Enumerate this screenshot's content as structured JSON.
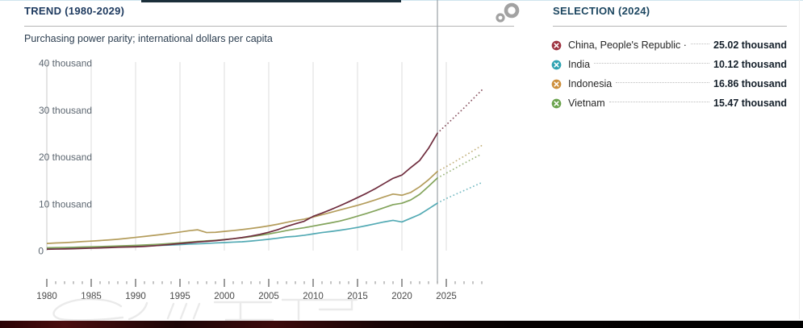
{
  "trend_panel": {
    "title": "TREND (1980-2029)",
    "subtitle": "Purchasing power parity; international dollars per capita"
  },
  "selection_panel": {
    "title": "SELECTION (2024)",
    "items": [
      {
        "label": "China, People's Republic ·",
        "value": "25.02 thousand",
        "icon_color": "#9e3340"
      },
      {
        "label": "India",
        "value": "10.12 thousand",
        "icon_color": "#2fa3b2"
      },
      {
        "label": "Indonesia",
        "value": "16.86 thousand",
        "icon_color": "#cd8f3c"
      },
      {
        "label": "Vietnam",
        "value": "15.47 thousand",
        "icon_color": "#6aa34d"
      }
    ]
  },
  "chart_data": {
    "type": "line",
    "title": "TREND (1980-2029)",
    "subtitle": "Purchasing power parity; international dollars per capita",
    "units": "thousand international dollars per capita",
    "x_start": 1980,
    "x_end": 2029,
    "solid_until_year": 2024,
    "selected_year": 2024,
    "ylim_thousand": [
      0,
      40
    ],
    "y_ticks": [
      {
        "value": 0,
        "label": "0"
      },
      {
        "value": 10,
        "label": "10 thousand"
      },
      {
        "value": 20,
        "label": "20 thousand"
      },
      {
        "value": 30,
        "label": "30 thousand"
      },
      {
        "value": 40,
        "label": "40 thousand"
      }
    ],
    "x_tick_labels": [
      1980,
      1985,
      1990,
      1995,
      2000,
      2005,
      2010,
      2015,
      2020,
      2025
    ],
    "grid_years": [
      1985,
      1990,
      1995,
      2000,
      2005,
      2010,
      2015,
      2020,
      2025
    ],
    "series": [
      {
        "name": "India",
        "color": "#53aab4",
        "values_thousand": [
          0.55,
          0.59,
          0.62,
          0.66,
          0.69,
          0.73,
          0.77,
          0.81,
          0.88,
          0.94,
          1.0,
          1.02,
          1.07,
          1.13,
          1.2,
          1.28,
          1.38,
          1.45,
          1.53,
          1.64,
          1.72,
          1.81,
          1.89,
          2.04,
          2.22,
          2.42,
          2.65,
          2.92,
          3.05,
          3.27,
          3.56,
          3.85,
          4.08,
          4.33,
          4.62,
          4.95,
          5.32,
          5.72,
          6.12,
          6.45,
          6.1,
          6.9,
          7.7,
          8.9,
          10.12,
          11.1,
          11.95,
          12.8,
          13.65,
          14.5
        ]
      },
      {
        "name": "Vietnam",
        "color": "#83a45c",
        "values_thousand": [
          0.6,
          0.64,
          0.68,
          0.72,
          0.77,
          0.82,
          0.87,
          0.93,
          0.99,
          1.05,
          1.12,
          1.2,
          1.3,
          1.41,
          1.53,
          1.66,
          1.81,
          1.96,
          2.08,
          2.2,
          2.36,
          2.54,
          2.74,
          2.98,
          3.26,
          3.56,
          3.9,
          4.28,
          4.6,
          4.88,
          5.22,
          5.58,
          5.92,
          6.3,
          6.8,
          7.35,
          7.9,
          8.5,
          9.15,
          9.8,
          10.1,
          10.8,
          12.0,
          13.7,
          15.47,
          16.5,
          17.55,
          18.6,
          19.6,
          20.6
        ]
      },
      {
        "name": "Indonesia",
        "color": "#b49d5c",
        "values_thousand": [
          1.52,
          1.63,
          1.7,
          1.8,
          1.93,
          2.03,
          2.15,
          2.28,
          2.43,
          2.62,
          2.82,
          3.03,
          3.24,
          3.46,
          3.7,
          3.96,
          4.24,
          4.44,
          3.85,
          3.9,
          4.1,
          4.28,
          4.48,
          4.72,
          4.98,
          5.28,
          5.62,
          6.02,
          6.4,
          6.7,
          7.15,
          7.65,
          8.15,
          8.65,
          9.15,
          9.65,
          10.2,
          10.8,
          11.45,
          12.05,
          11.8,
          12.4,
          13.6,
          15.1,
          16.86,
          17.9,
          19.0,
          20.1,
          21.25,
          22.4
        ]
      },
      {
        "name": "China, People's Republic of",
        "color": "#6f2d3e",
        "values_thousand": [
          0.3,
          0.33,
          0.37,
          0.41,
          0.47,
          0.53,
          0.58,
          0.65,
          0.73,
          0.77,
          0.82,
          0.9,
          1.02,
          1.17,
          1.33,
          1.5,
          1.67,
          1.84,
          1.98,
          2.13,
          2.32,
          2.54,
          2.79,
          3.1,
          3.47,
          3.92,
          4.46,
          5.14,
          5.72,
          6.26,
          7.3,
          8.0,
          8.75,
          9.55,
          10.4,
          11.3,
          12.2,
          13.2,
          14.3,
          15.4,
          16.1,
          17.7,
          19.2,
          21.8,
          25.02,
          26.8,
          28.6,
          30.4,
          32.3,
          34.2
        ]
      }
    ],
    "values_2024_thousand": {
      "China, People's Republic of": 25.02,
      "India": 10.12,
      "Indonesia": 16.86,
      "Vietnam": 15.47
    },
    "legend_position": "right"
  }
}
